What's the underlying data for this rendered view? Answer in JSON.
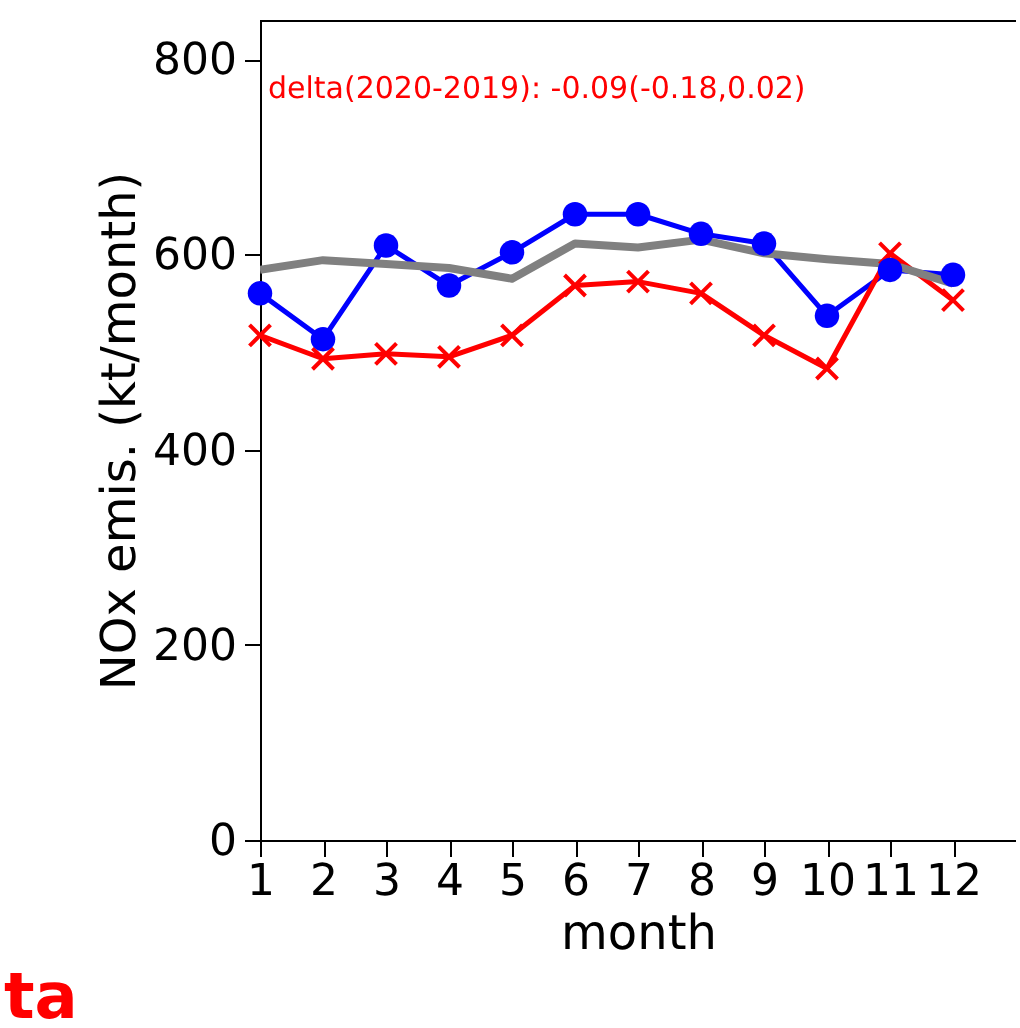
{
  "chart_data": {
    "type": "line",
    "ylabel": "NOx emis. (kt/month)",
    "xlabel": "month",
    "x": [
      1,
      2,
      3,
      4,
      5,
      6,
      7,
      8,
      9,
      10,
      11,
      12
    ],
    "xlim": [
      1,
      13
    ],
    "xticks": [
      1,
      2,
      3,
      4,
      5,
      6,
      7,
      8,
      9,
      10,
      11,
      12
    ],
    "ylim": [
      0,
      840
    ],
    "yticks": [
      0,
      200,
      400,
      600,
      800
    ],
    "grid": false,
    "annotations": [
      "delta(2020-2019): -0.09(-0.18,0.02)",
      "ta"
    ],
    "series": [
      {
        "color": "#0000ff",
        "marker": "circle",
        "values": [
          560,
          513,
          609,
          568,
          602,
          641,
          641,
          621,
          611,
          537,
          584,
          579
        ]
      },
      {
        "color": "#ff0000",
        "marker": "cross",
        "values": [
          517,
          493,
          498,
          495,
          517,
          568,
          572,
          560,
          517,
          483,
          601,
          553
        ]
      },
      {
        "color": "#808080",
        "marker": "none",
        "values": [
          584,
          594,
          590,
          586,
          575,
          611,
          607,
          615,
          601,
          595,
          590,
          570
        ]
      }
    ]
  }
}
